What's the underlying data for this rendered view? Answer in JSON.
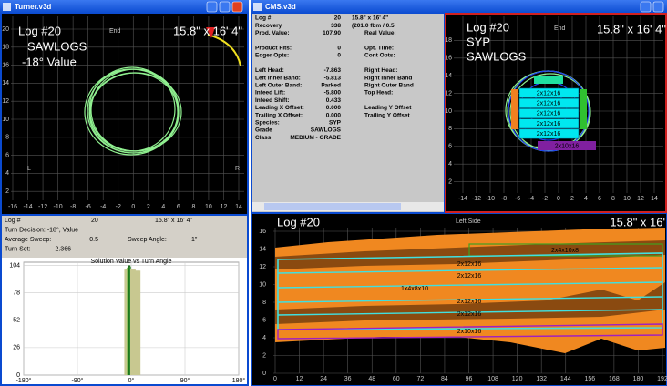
{
  "turner": {
    "title": "Turner.v3d",
    "end_view": {
      "log": "Log #20",
      "size": "15.8\" x 16' 4\"",
      "grade": "SAWLOGS",
      "value": "-18° Value",
      "face": "End",
      "left": "L",
      "right": "R",
      "xticks": [
        -16,
        -14,
        -12,
        -10,
        -8,
        -6,
        -4,
        -2,
        0,
        2,
        4,
        6,
        8,
        10,
        12,
        14
      ],
      "yticks": [
        20,
        18,
        16,
        14,
        12,
        10,
        8,
        6,
        4,
        2
      ]
    },
    "info": {
      "rows": [
        [
          "Log #",
          "20",
          "15.8\" x 16' 4\""
        ],
        [
          "Turn Decision: -18°, Value"
        ],
        [
          "Average Sweep:",
          "0.5",
          "Sweep Angle:",
          "1\""
        ],
        [
          "Turn Set:",
          "-2.366"
        ]
      ]
    }
  },
  "chart_data": {
    "type": "bar",
    "title": "Solution Value vs Turn Angle",
    "x": [
      -10,
      -8,
      -6,
      -4,
      -3,
      -2,
      0,
      2,
      4,
      6,
      8,
      10,
      12,
      14
    ],
    "values": [
      100,
      101,
      102,
      104,
      104,
      103,
      101,
      100,
      100,
      100,
      99,
      99,
      99,
      99
    ],
    "colors": [
      "#c8c890",
      "#c8c890",
      "#8fbf5f",
      "#2a8a2a",
      "#1a6a1a",
      "#2a8a2a",
      "#c8c890",
      "#c8c890",
      "#c8c890",
      "#c8c890",
      "#c8c890",
      "#c8c890",
      "#c8c890",
      "#c8c890"
    ],
    "xlim": [
      -180,
      180
    ],
    "ylim": [
      0,
      107
    ],
    "xticks": [
      {
        "value": -180,
        "label": "-180°"
      },
      {
        "value": -90,
        "label": "-90°"
      },
      {
        "value": 0,
        "label": "0°"
      },
      {
        "value": 90,
        "label": "90°"
      },
      {
        "value": 180,
        "label": "180°"
      }
    ],
    "yticks": [
      104,
      78,
      52,
      26,
      0
    ],
    "grid": true
  },
  "cms": {
    "title": "CMS.v3d",
    "info": {
      "groups": [
        [
          [
            "Log #",
            "20",
            "15.8\" x 16' 4\""
          ],
          [
            "Recovery",
            "338",
            "(201.0 fbm / 0.5"
          ],
          [
            "Prod. Value:",
            "107.90",
            "Real Value:"
          ]
        ],
        [
          [
            "Product Fits:",
            "0",
            "Opt. Time:"
          ],
          [
            "Edger Opts:",
            "0",
            "Cont Opts:"
          ]
        ],
        [
          [
            "Left Head:",
            "-7.863",
            "Right Head:"
          ],
          [
            "Left Inner Band:",
            "-5.813",
            "Right Inner Band"
          ],
          [
            "Left Outer Band:",
            "Parked",
            "Right Outer Band"
          ],
          [
            "Infeed Lift:",
            "-5.800",
            "Top Head:"
          ],
          [
            "Infeed Shift:",
            "0.433"
          ],
          [
            "Leading X Offset:",
            "0.000",
            "Leading Y Offset"
          ],
          [
            "Trailing X Offset:",
            "0.000",
            "Trailing Y Offset"
          ],
          [
            "Species:",
            "SYP"
          ],
          [
            "Grade",
            "SAWLOGS"
          ],
          [
            "Class:",
            "MEDIUM - GRADE"
          ]
        ]
      ]
    },
    "end_view": {
      "log": "Log #20",
      "species": "SYP",
      "grade": "SAWLOGS",
      "face": "End",
      "size": "15.8\" x 16' 4\"",
      "boards": [
        "2x12x16",
        "2x12x16",
        "2x12x16",
        "2x12x16",
        "2x12x16"
      ],
      "bottom_board": "2x10x16",
      "xticks": [
        -14,
        -12,
        -10,
        -8,
        -6,
        -4,
        -2,
        0,
        2,
        4,
        6,
        8,
        10,
        12,
        14
      ],
      "yticks": [
        18,
        16,
        14,
        12,
        10,
        8,
        6,
        4,
        2
      ]
    },
    "side_view": {
      "log": "Log #20",
      "face": "Left Side",
      "size": "15.8\" x 16'",
      "boards": [
        "2x4x10x8",
        "2x12x16",
        "2x12x16",
        "1x4x8x10",
        "2x12x16",
        "2x12x16",
        "2x10x16"
      ],
      "xticks": [
        0,
        12,
        24,
        36,
        48,
        60,
        72,
        84,
        96,
        108,
        120,
        132,
        144,
        156,
        168,
        180,
        192
      ],
      "yticks": [
        16,
        14,
        12,
        10,
        8,
        6,
        4,
        2,
        0
      ]
    }
  }
}
